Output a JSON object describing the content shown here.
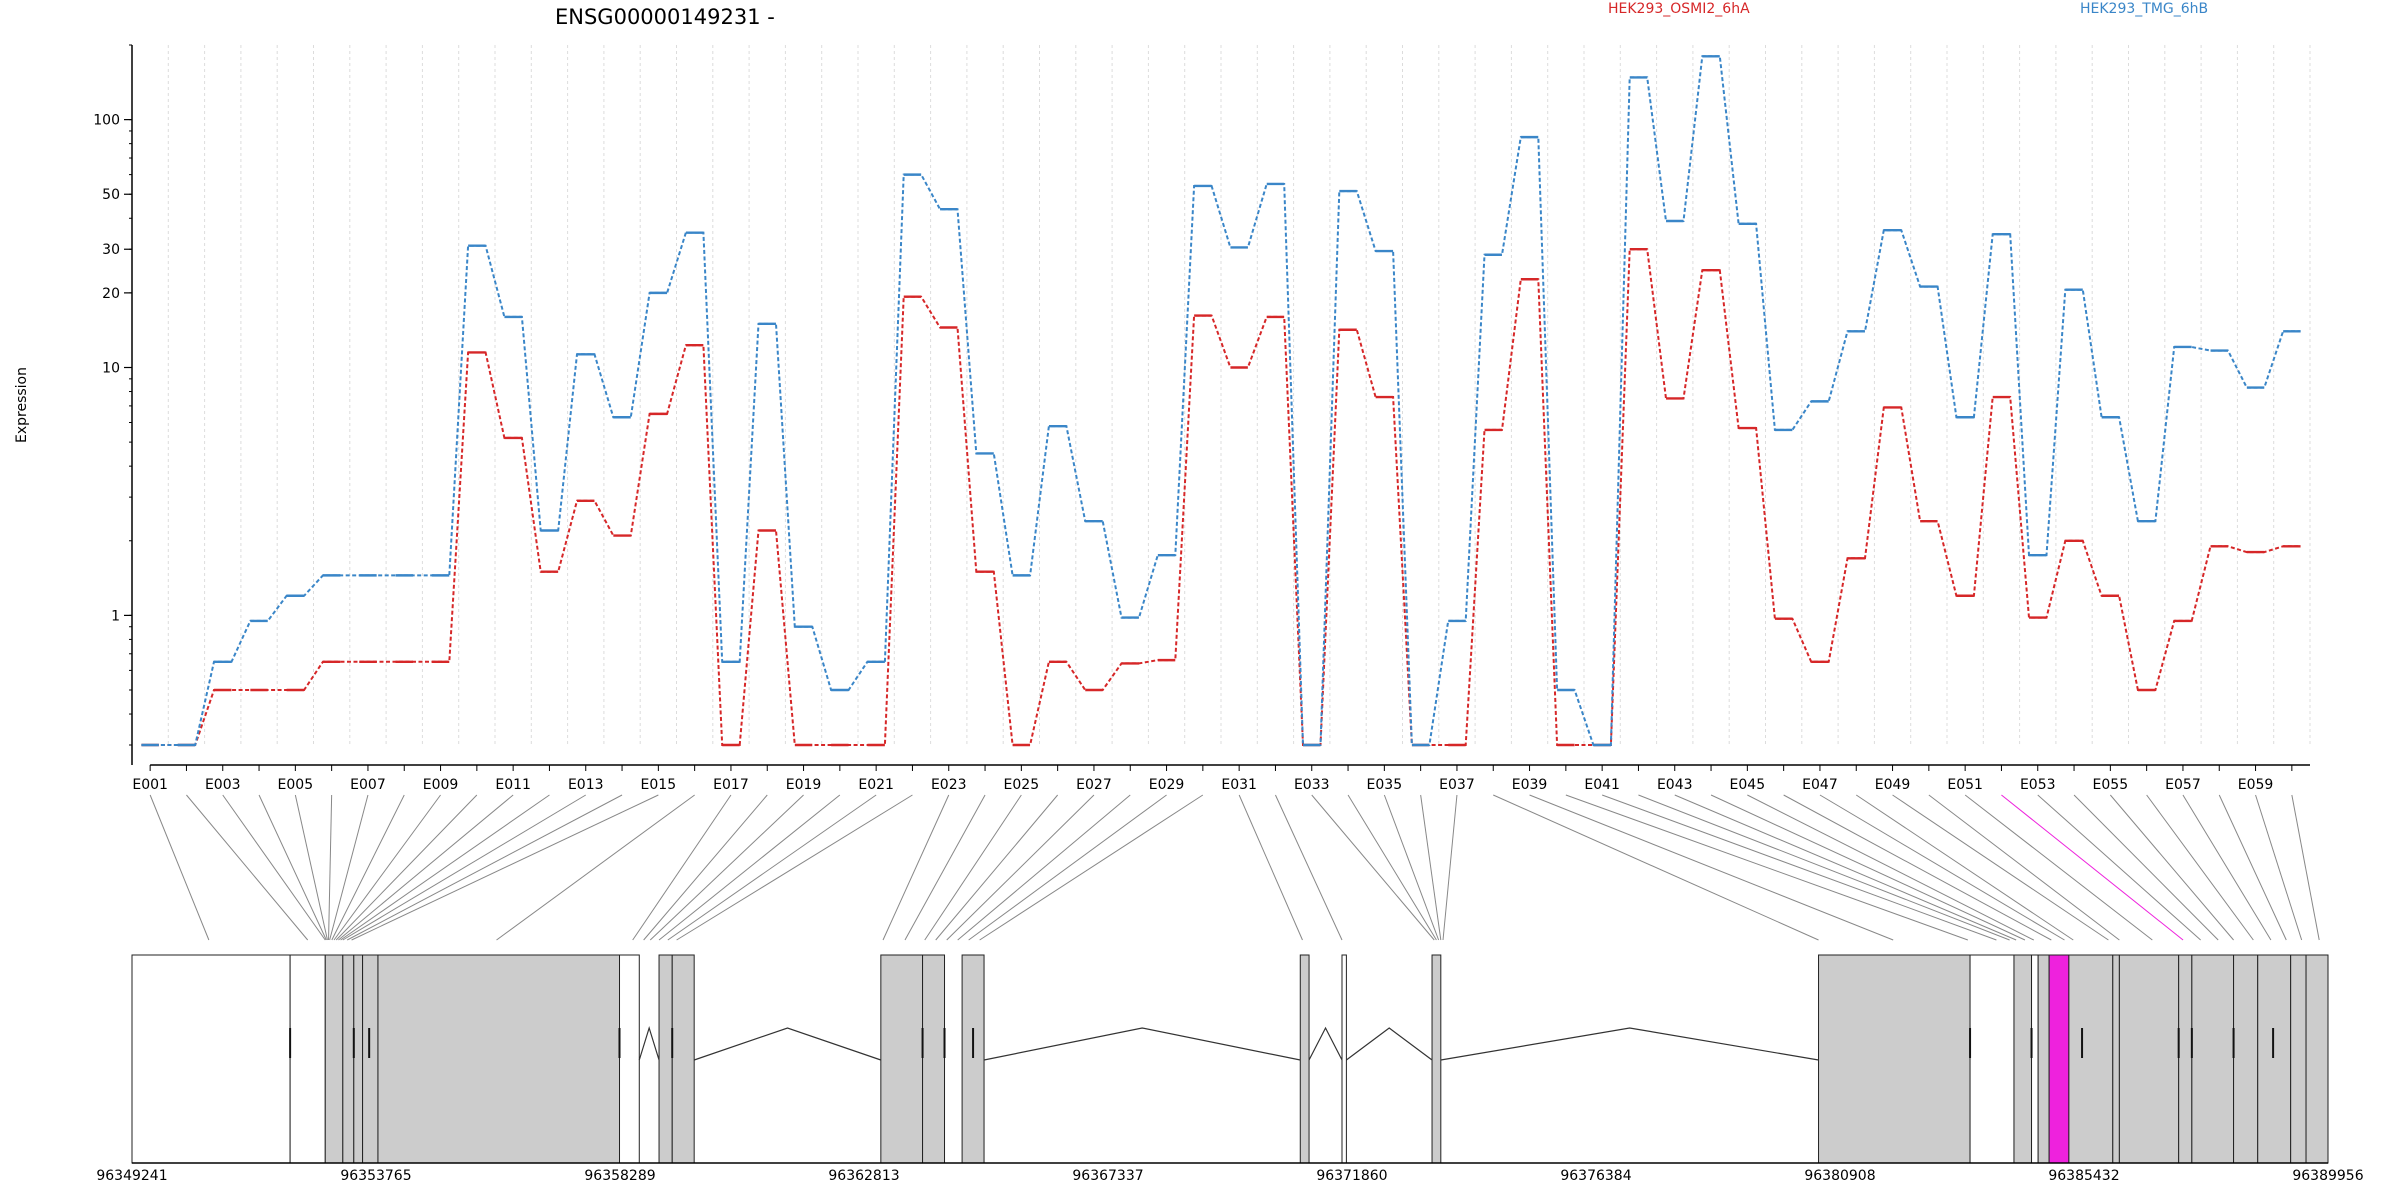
{
  "chart_data": {
    "type": "line",
    "title": "ENSG00000149231 -",
    "ylabel": "Expression",
    "yscale": "log",
    "ylim": [
      0.3,
      200
    ],
    "yticks": [
      1,
      10,
      20,
      30,
      50,
      100
    ],
    "grid": "vertical",
    "legend": "top-right",
    "categories": [
      "E001",
      "E002",
      "E003",
      "E004",
      "E005",
      "E006",
      "E007",
      "E008",
      "E009",
      "E010",
      "E011",
      "E012",
      "E013",
      "E014",
      "E015",
      "E016",
      "E017",
      "E018",
      "E019",
      "E020",
      "E021",
      "E022",
      "E023",
      "E024",
      "E025",
      "E026",
      "E027",
      "E028",
      "E029",
      "E030",
      "E031",
      "E032",
      "E033",
      "E034",
      "E035",
      "E036",
      "E037",
      "E038",
      "E039",
      "E040",
      "E041",
      "E042",
      "E043",
      "E044",
      "E045",
      "E046",
      "E047",
      "E048",
      "E049",
      "E050",
      "E051",
      "E052",
      "E053",
      "E054",
      "E055",
      "E056",
      "E057",
      "E058",
      "E059",
      "E060"
    ],
    "x_tick_labels": [
      "E001",
      "E003",
      "E005",
      "E007",
      "E009",
      "E011",
      "E013",
      "E015",
      "E017",
      "E019",
      "E021",
      "E023",
      "E025",
      "E027",
      "E029",
      "E031",
      "E033",
      "E035",
      "E037",
      "E039",
      "E041",
      "E043",
      "E045",
      "E047",
      "E049",
      "E051",
      "E053",
      "E055",
      "E057",
      "E059"
    ],
    "series": [
      {
        "name": "HEK293_OSMI2_6hA",
        "color": "#d62728",
        "values": [
          0.3,
          0.3,
          0.5,
          0.5,
          0.5,
          0.65,
          0.65,
          0.65,
          0.65,
          11.5,
          5.2,
          1.5,
          2.9,
          2.1,
          6.5,
          12.3,
          0.3,
          2.2,
          0.3,
          0.3,
          0.3,
          19.3,
          14.5,
          1.5,
          0.3,
          0.65,
          0.5,
          0.64,
          0.66,
          16.2,
          10,
          16,
          0.3,
          14.2,
          7.6,
          0.3,
          0.3,
          5.6,
          22.7,
          0.3,
          0.3,
          30,
          7.5,
          24.7,
          5.7,
          0.97,
          0.65,
          1.7,
          6.9,
          2.4,
          1.2,
          7.6,
          0.98,
          2.0,
          1.2,
          0.5,
          0.95,
          1.9,
          1.8,
          1.9
        ]
      },
      {
        "name": "HEK293_TMG_6hB",
        "color": "#3a86c8",
        "values": [
          0.3,
          0.3,
          0.65,
          0.95,
          1.2,
          1.45,
          1.45,
          1.45,
          1.45,
          31,
          16,
          2.2,
          11.3,
          6.3,
          20,
          35,
          0.65,
          15,
          0.9,
          0.5,
          0.65,
          60,
          43.5,
          4.5,
          1.45,
          5.8,
          2.4,
          0.98,
          1.75,
          54,
          30.5,
          55,
          0.3,
          51.5,
          29.5,
          0.3,
          0.95,
          28.5,
          85,
          0.5,
          0.3,
          148,
          39,
          180,
          38,
          5.6,
          7.3,
          14,
          35.8,
          21.2,
          6.3,
          34.5,
          1.75,
          20.6,
          6.3,
          2.4,
          12.1,
          11.7,
          8.3,
          14
        ]
      }
    ]
  },
  "gene_model": {
    "genomic_positions": [
      "96349241",
      "96353765",
      "96358289",
      "96362813",
      "96367337",
      "96371860",
      "96376384",
      "96380908",
      "96385432",
      "96389956"
    ],
    "highlight_color": "#ee22dd",
    "highlighted_exon": "E052"
  }
}
